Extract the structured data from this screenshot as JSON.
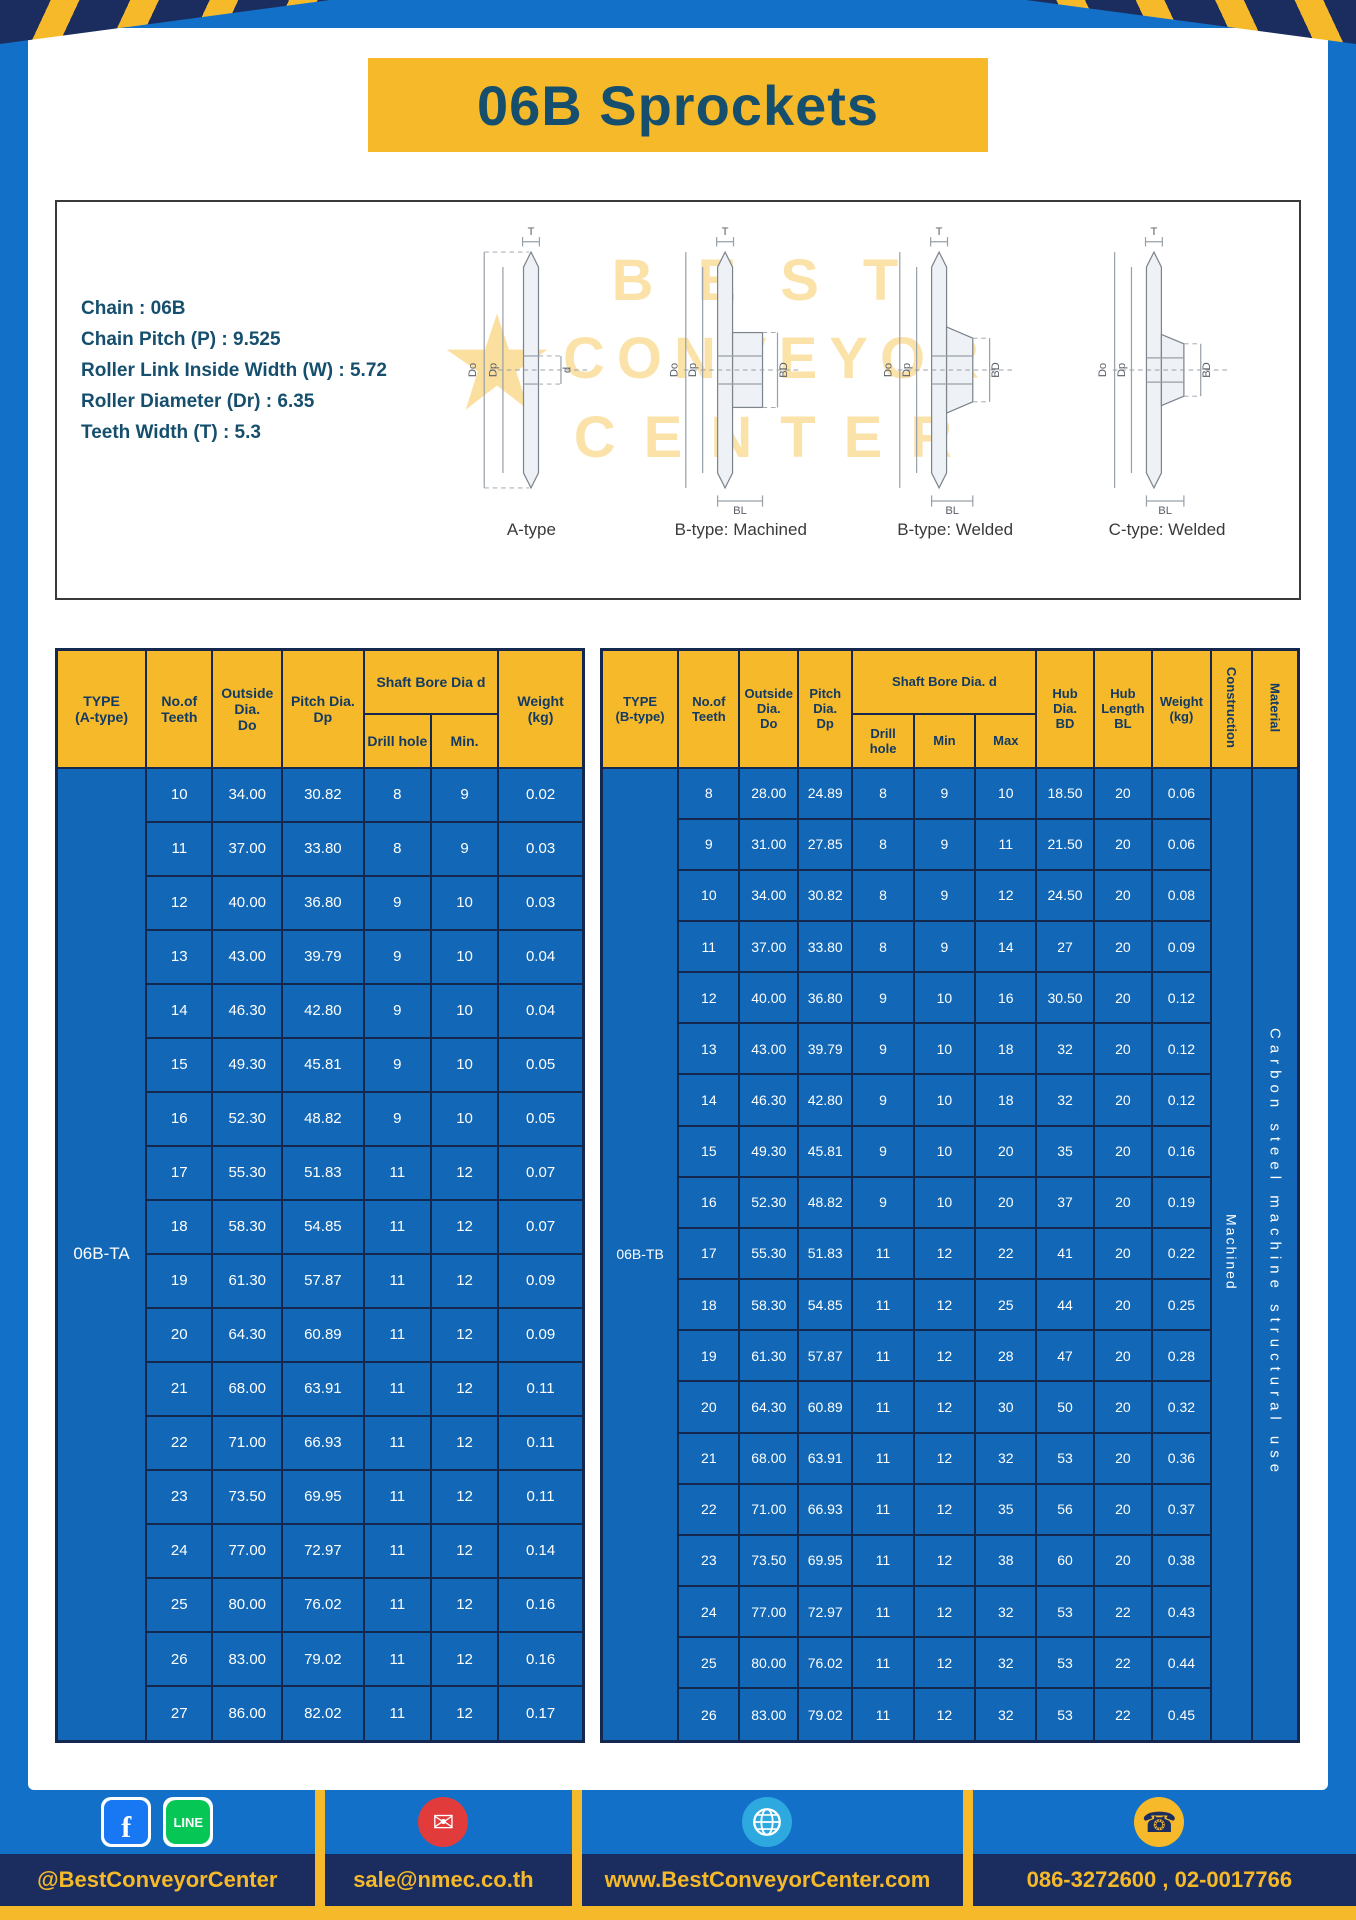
{
  "page": {
    "title": "06B Sprockets"
  },
  "colors": {
    "frame_blue": "#1370C8",
    "table_blue": "#1268B6",
    "accent_yellow": "#F5B92A",
    "navy": "#1B2D5E",
    "border_navy": "#14284F",
    "title_text": "#164F6E"
  },
  "specs": {
    "lines": [
      "Chain : 06B",
      "Chain Pitch (P) : 9.525",
      "Roller Link Inside Width (W) : 5.72",
      "Roller Diameter (Dr) : 6.35",
      "Teeth Width (T) : 5.3"
    ],
    "diagram_labels": [
      "A-type",
      "B-type: Machined",
      "B-type: Welded",
      "C-type: Welded"
    ],
    "diagram_dims": {
      "t": "T",
      "do": "Do",
      "dp": "Dp",
      "d": "d",
      "bd": "BD",
      "bl": "BL"
    }
  },
  "watermark": {
    "lines": [
      "BEST",
      "CONVEYOR",
      "CENTER"
    ]
  },
  "table_a": {
    "headers": {
      "type": "TYPE\n(A-type)",
      "teeth": "No.of\nTeeth",
      "outside": "Outside\nDia.\nDo",
      "pitch": "Pitch Dia.\nDp",
      "shaft": "Shaft Bore Dia d",
      "drill": "Drill hole",
      "min": "Min.",
      "weight": "Weight\n(kg)"
    },
    "type_label": "06B-TA",
    "rows": [
      [
        "10",
        "34.00",
        "30.82",
        "8",
        "9",
        "0.02"
      ],
      [
        "11",
        "37.00",
        "33.80",
        "8",
        "9",
        "0.03"
      ],
      [
        "12",
        "40.00",
        "36.80",
        "9",
        "10",
        "0.03"
      ],
      [
        "13",
        "43.00",
        "39.79",
        "9",
        "10",
        "0.04"
      ],
      [
        "14",
        "46.30",
        "42.80",
        "9",
        "10",
        "0.04"
      ],
      [
        "15",
        "49.30",
        "45.81",
        "9",
        "10",
        "0.05"
      ],
      [
        "16",
        "52.30",
        "48.82",
        "9",
        "10",
        "0.05"
      ],
      [
        "17",
        "55.30",
        "51.83",
        "11",
        "12",
        "0.07"
      ],
      [
        "18",
        "58.30",
        "54.85",
        "11",
        "12",
        "0.07"
      ],
      [
        "19",
        "61.30",
        "57.87",
        "11",
        "12",
        "0.09"
      ],
      [
        "20",
        "64.30",
        "60.89",
        "11",
        "12",
        "0.09"
      ],
      [
        "21",
        "68.00",
        "63.91",
        "11",
        "12",
        "0.11"
      ],
      [
        "22",
        "71.00",
        "66.93",
        "11",
        "12",
        "0.11"
      ],
      [
        "23",
        "73.50",
        "69.95",
        "11",
        "12",
        "0.11"
      ],
      [
        "24",
        "77.00",
        "72.97",
        "11",
        "12",
        "0.14"
      ],
      [
        "25",
        "80.00",
        "76.02",
        "11",
        "12",
        "0.16"
      ],
      [
        "26",
        "83.00",
        "79.02",
        "11",
        "12",
        "0.16"
      ],
      [
        "27",
        "86.00",
        "82.02",
        "11",
        "12",
        "0.17"
      ]
    ]
  },
  "table_b": {
    "headers": {
      "type": "TYPE\n(B-type)",
      "teeth": "No.of\nTeeth",
      "outside": "Outside\nDia.\nDo",
      "pitch": "Pitch\nDia.\nDp",
      "shaft": "Shaft Bore Dia. d",
      "drill": "Drill hole",
      "min": "Min",
      "max": "Max",
      "hub_dia": "Hub\nDia.\nBD",
      "hub_len": "Hub\nLength\nBL",
      "weight": "Weight\n(kg)",
      "construction": "Construction",
      "material": "Material"
    },
    "type_label": "06B-TB",
    "construction": "Machined",
    "material": "Carbon steel machine structural use",
    "rows": [
      [
        "8",
        "28.00",
        "24.89",
        "8",
        "9",
        "10",
        "18.50",
        "20",
        "0.06"
      ],
      [
        "9",
        "31.00",
        "27.85",
        "8",
        "9",
        "11",
        "21.50",
        "20",
        "0.06"
      ],
      [
        "10",
        "34.00",
        "30.82",
        "8",
        "9",
        "12",
        "24.50",
        "20",
        "0.08"
      ],
      [
        "11",
        "37.00",
        "33.80",
        "8",
        "9",
        "14",
        "27",
        "20",
        "0.09"
      ],
      [
        "12",
        "40.00",
        "36.80",
        "9",
        "10",
        "16",
        "30.50",
        "20",
        "0.12"
      ],
      [
        "13",
        "43.00",
        "39.79",
        "9",
        "10",
        "18",
        "32",
        "20",
        "0.12"
      ],
      [
        "14",
        "46.30",
        "42.80",
        "9",
        "10",
        "18",
        "32",
        "20",
        "0.12"
      ],
      [
        "15",
        "49.30",
        "45.81",
        "9",
        "10",
        "20",
        "35",
        "20",
        "0.16"
      ],
      [
        "16",
        "52.30",
        "48.82",
        "9",
        "10",
        "20",
        "37",
        "20",
        "0.19"
      ],
      [
        "17",
        "55.30",
        "51.83",
        "11",
        "12",
        "22",
        "41",
        "20",
        "0.22"
      ],
      [
        "18",
        "58.30",
        "54.85",
        "11",
        "12",
        "25",
        "44",
        "20",
        "0.25"
      ],
      [
        "19",
        "61.30",
        "57.87",
        "11",
        "12",
        "28",
        "47",
        "20",
        "0.28"
      ],
      [
        "20",
        "64.30",
        "60.89",
        "11",
        "12",
        "30",
        "50",
        "20",
        "0.32"
      ],
      [
        "21",
        "68.00",
        "63.91",
        "11",
        "12",
        "32",
        "53",
        "20",
        "0.36"
      ],
      [
        "22",
        "71.00",
        "66.93",
        "11",
        "12",
        "35",
        "56",
        "20",
        "0.37"
      ],
      [
        "23",
        "73.50",
        "69.95",
        "11",
        "12",
        "38",
        "60",
        "20",
        "0.38"
      ],
      [
        "24",
        "77.00",
        "72.97",
        "11",
        "12",
        "32",
        "53",
        "22",
        "0.43"
      ],
      [
        "25",
        "80.00",
        "76.02",
        "11",
        "12",
        "32",
        "53",
        "22",
        "0.44"
      ],
      [
        "26",
        "83.00",
        "79.02",
        "11",
        "12",
        "32",
        "53",
        "22",
        "0.45"
      ]
    ]
  },
  "footer": {
    "social_label": "@BestConveyorCenter",
    "email": "sale@nmec.co.th",
    "website": "www.BestConveyorCenter.com",
    "phones": "086-3272600 , 02-0017766",
    "facebook_letter": "f",
    "line_text": "LINE",
    "icons": {
      "email_glyph": "✉",
      "phone_glyph": "☎"
    }
  }
}
